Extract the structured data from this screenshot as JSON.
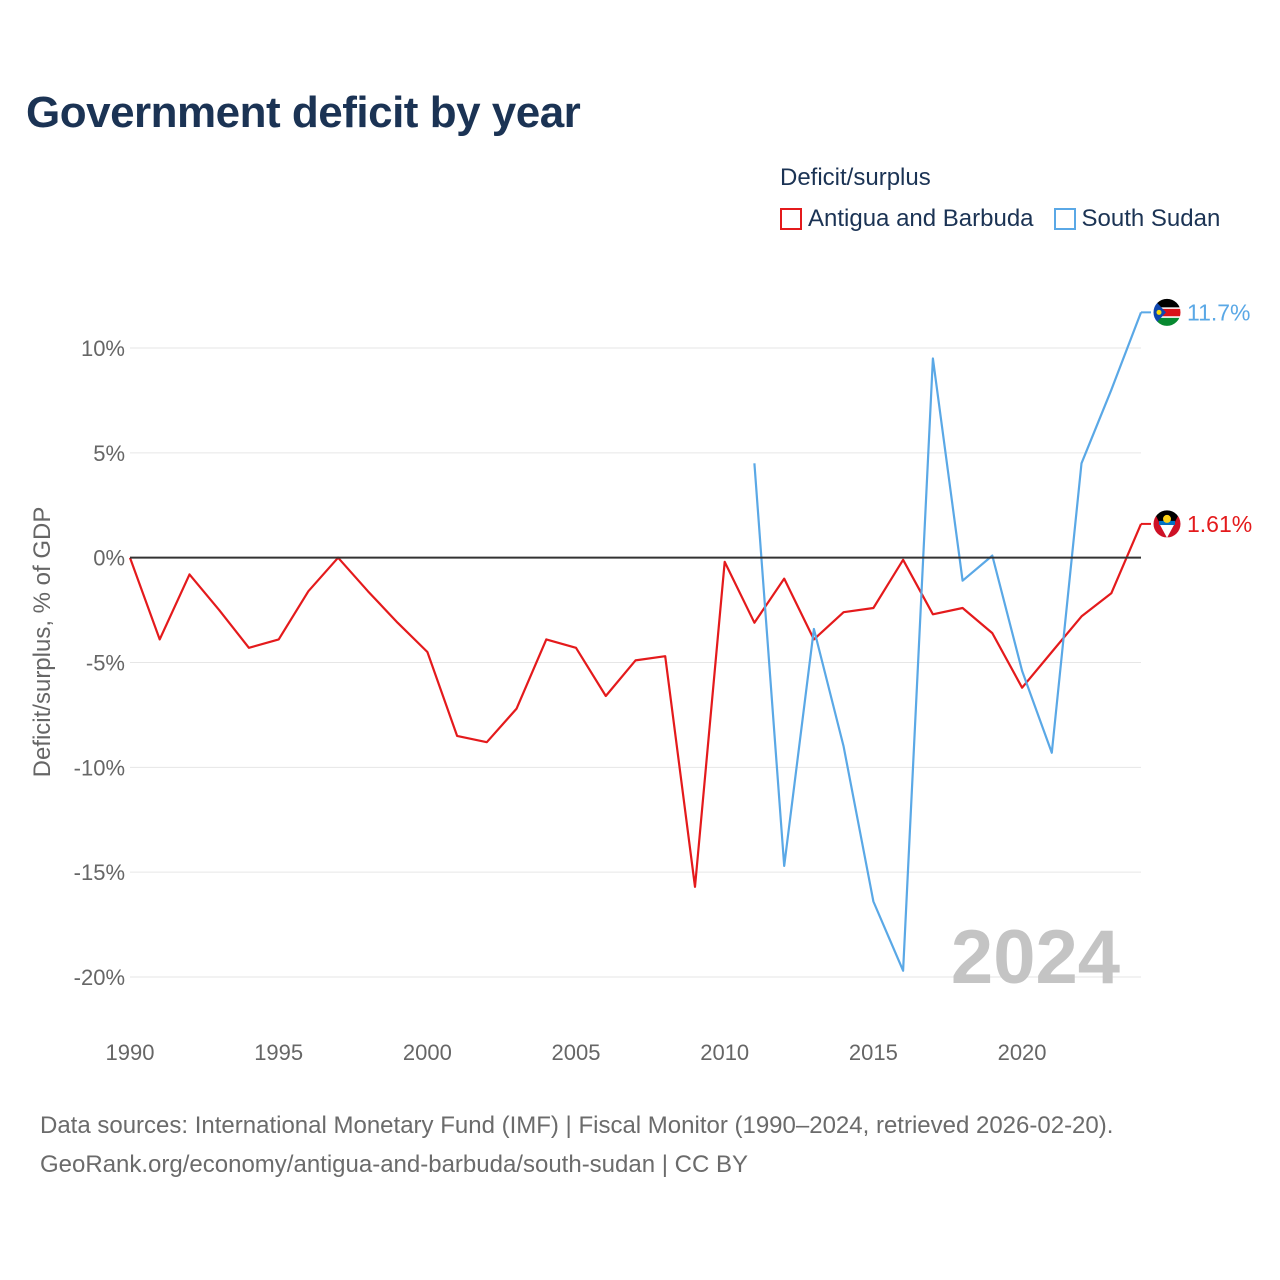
{
  "chart_data": {
    "type": "line",
    "title": "Government deficit by year",
    "ylabel": "Deficit/surplus, % of GDP",
    "xlabel": "",
    "xlim": [
      1990,
      2024
    ],
    "ylim": [
      -20,
      10
    ],
    "x_ticks": [
      1990,
      1995,
      2000,
      2005,
      2010,
      2015,
      2020
    ],
    "x_tick_labels": [
      "1990",
      "1995",
      "2000",
      "2005",
      "2010",
      "2015",
      "2020"
    ],
    "y_ticks": [
      10,
      5,
      0,
      -5,
      -10,
      -15,
      -20
    ],
    "y_tick_labels": [
      "10%",
      "5%",
      "0%",
      "-5%",
      "-10%",
      "-15%",
      "-20%"
    ],
    "legend_title": "Deficit/surplus",
    "year_watermark": "2024",
    "series": [
      {
        "name": "Antigua and Barbuda",
        "color": "#e41a1c",
        "end_label": "1.61%",
        "x": [
          1990,
          1991,
          1992,
          1993,
          1994,
          1995,
          1996,
          1997,
          1998,
          1999,
          2000,
          2001,
          2002,
          2003,
          2004,
          2005,
          2006,
          2007,
          2008,
          2009,
          2010,
          2011,
          2012,
          2013,
          2014,
          2015,
          2016,
          2017,
          2018,
          2019,
          2020,
          2021,
          2022,
          2023,
          2024
        ],
        "values": [
          0,
          -3.9,
          -0.8,
          -2.5,
          -4.3,
          -3.9,
          -1.6,
          0,
          -1.6,
          -3.1,
          -4.5,
          -8.5,
          -8.8,
          -7.2,
          -3.9,
          -4.3,
          -6.6,
          -4.9,
          -4.7,
          -15.7,
          -0.2,
          -3.1,
          -1,
          -3.9,
          -2.6,
          -2.4,
          -0.1,
          -2.7,
          -2.4,
          -3.6,
          -6.2,
          -4.5,
          -2.8,
          -1.7,
          1.61
        ]
      },
      {
        "name": "South Sudan",
        "color": "#5aa8e6",
        "end_label": "11.7%",
        "x": [
          2011,
          2012,
          2013,
          2014,
          2015,
          2016,
          2017,
          2018,
          2019,
          2020,
          2021,
          2022,
          2023,
          2024
        ],
        "values": [
          4.5,
          -14.7,
          -3.4,
          -9,
          -16.4,
          -19.7,
          9.5,
          -1.1,
          0.1,
          -5.4,
          -9.3,
          4.5,
          8,
          11.7
        ]
      }
    ]
  },
  "source_line1": "Data sources: International Monetary Fund (IMF) | Fiscal Monitor (1990–2024, retrieved 2026-02-20).",
  "source_line2": "GeoRank.org/economy/antigua-and-barbuda/south-sudan | CC BY"
}
